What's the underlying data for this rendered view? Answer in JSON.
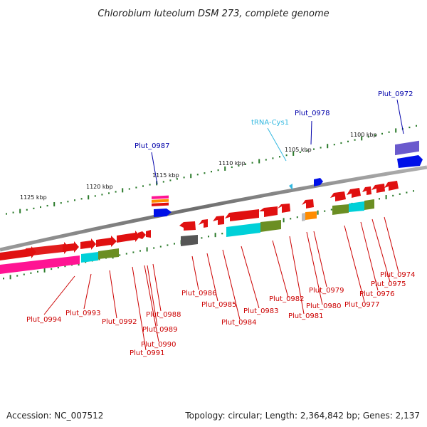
{
  "title": "Chlorobium luteolum DSM 273, complete genome",
  "footer": {
    "accession": "Accession: NC_007512",
    "topology": "Topology: circular; Length: 2,364,842 bp; Genes: 2,137"
  },
  "colors": {
    "backbone": "#808080",
    "ticks": "#2a7a2a",
    "red_gene": "#e01010",
    "blue_label": "#0000aa",
    "red_label": "#cc0000",
    "trna_label": "#33b8e0",
    "gene_blue": "#0010e8",
    "gene_purple": "#6a5acd",
    "gene_pink": "#ff1493",
    "gene_cyan": "#00d0d8",
    "gene_olive": "#6b8e23",
    "gene_gray": "#555555",
    "gene_orange": "#ff8c00",
    "trna_feature": "#33b8e0"
  },
  "scale_labels": [
    "1125 kbp",
    "1120 kbp",
    "1115 kbp",
    "1110 kbp",
    "1105 kbp",
    "1100 kbp"
  ],
  "feature_labels": {
    "trna": "tRNA-Cys1",
    "p0972": "Plut_0972",
    "p0978": "Plut_0978",
    "p0987": "Plut_0987",
    "p0974": "Plut_0974",
    "p0975": "Plut_0975",
    "p0976": "Plut_0976",
    "p0977": "Plut_0977",
    "p0979": "Plut_0979",
    "p0980": "Plut_0980",
    "p0981": "Plut_0981",
    "p0982": "Plut_0982",
    "p0983": "Plut_0983",
    "p0984": "Plut_0984",
    "p0985": "Plut_0985",
    "p0986": "Plut_0986",
    "p0988": "Plut_0988",
    "p0989": "Plut_0989",
    "p0990": "Plut_0990",
    "p0991": "Plut_0991",
    "p0992": "Plut_0992",
    "p0993": "Plut_0993",
    "p0994": "Plut_0994"
  }
}
